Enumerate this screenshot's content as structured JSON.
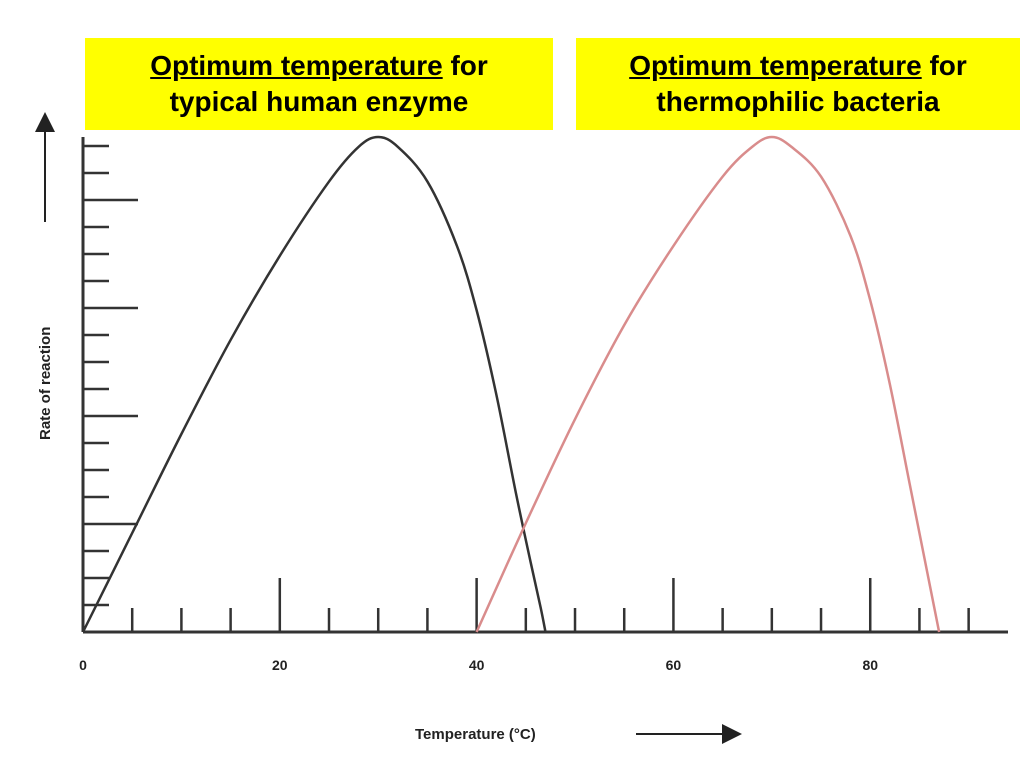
{
  "callouts": {
    "human": {
      "underlined": "Optimum temperature",
      "rest_line1": " for",
      "line2": "typical human enzyme"
    },
    "thermophilic": {
      "underlined": "Optimum temperature",
      "rest_line1": " for",
      "line2": "thermophilic bacteria"
    }
  },
  "chart_data": {
    "type": "line",
    "title": "",
    "xlabel": "Temperature (°C)",
    "ylabel": "Rate of reaction",
    "xlim": [
      0,
      94
    ],
    "ylim": [
      0,
      100
    ],
    "x_tick_labels": [
      {
        "value": 0,
        "label": "0"
      },
      {
        "value": 20,
        "label": "20"
      },
      {
        "value": 40,
        "label": "40"
      },
      {
        "value": 60,
        "label": "60"
      },
      {
        "value": 80,
        "label": "80"
      }
    ],
    "grid": false,
    "legend": "none",
    "series": [
      {
        "color": "#333333",
        "x": [
          0,
          5,
          10,
          15,
          20,
          25,
          28,
          30,
          32,
          35,
          38,
          40,
          42,
          44,
          45.5,
          46.5,
          47
        ],
        "y": [
          0,
          20,
          40,
          59,
          76,
          91,
          98,
          100,
          98,
          91,
          78,
          65,
          48,
          28,
          14,
          5,
          0
        ]
      },
      {
        "color": "#d98c8c",
        "x": [
          40,
          45,
          50,
          55,
          60,
          65,
          68,
          70,
          72,
          75,
          78,
          80,
          82,
          84,
          85.5,
          86.5,
          87
        ],
        "y": [
          0,
          22,
          43,
          62,
          78,
          92,
          98,
          100,
          98,
          92,
          80,
          67,
          50,
          30,
          15,
          5,
          0
        ]
      }
    ]
  }
}
